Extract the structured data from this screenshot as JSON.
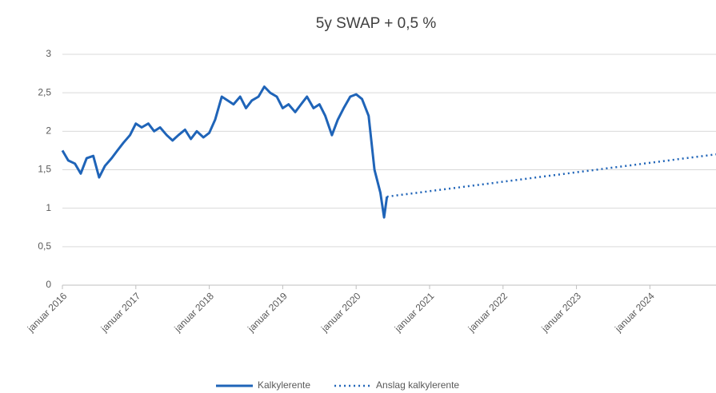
{
  "chart_data": {
    "type": "line",
    "title": "5y SWAP + 0,5 %",
    "series": [
      {
        "name": "Kalkylerente",
        "color": "#1f64b8",
        "dash": "solid",
        "x": [
          2016.0,
          2016.08,
          2016.17,
          2016.25,
          2016.33,
          2016.42,
          2016.5,
          2016.58,
          2016.67,
          2016.75,
          2016.83,
          2016.92,
          2017.0,
          2017.08,
          2017.17,
          2017.25,
          2017.33,
          2017.42,
          2017.5,
          2017.58,
          2017.67,
          2017.75,
          2017.83,
          2017.92,
          2018.0,
          2018.08,
          2018.17,
          2018.25,
          2018.33,
          2018.42,
          2018.5,
          2018.58,
          2018.67,
          2018.75,
          2018.83,
          2018.92,
          2019.0,
          2019.08,
          2019.17,
          2019.25,
          2019.33,
          2019.42,
          2019.5,
          2019.58,
          2019.67,
          2019.75,
          2019.83,
          2019.92,
          2020.0,
          2020.08,
          2020.17,
          2020.25,
          2020.33,
          2020.38,
          2020.42
        ],
        "values": [
          1.75,
          1.62,
          1.58,
          1.45,
          1.65,
          1.68,
          1.4,
          1.55,
          1.65,
          1.75,
          1.85,
          1.95,
          2.1,
          2.05,
          2.1,
          2.0,
          2.05,
          1.95,
          1.88,
          1.95,
          2.02,
          1.9,
          2.0,
          1.92,
          1.98,
          2.15,
          2.45,
          2.4,
          2.35,
          2.45,
          2.3,
          2.4,
          2.45,
          2.58,
          2.5,
          2.45,
          2.3,
          2.35,
          2.25,
          2.35,
          2.45,
          2.3,
          2.35,
          2.2,
          1.95,
          2.15,
          2.3,
          2.45,
          2.48,
          2.42,
          2.2,
          1.5,
          1.2,
          0.88,
          1.15
        ]
      },
      {
        "name": "Anslag kalkylerente",
        "color": "#1f64b8",
        "dash": "dotted",
        "x": [
          2020.42,
          2024.9
        ],
        "values": [
          1.15,
          1.7
        ]
      }
    ],
    "xlim": [
      2016,
      2024.9
    ],
    "xticks": [
      {
        "value": 2016,
        "label": "januar 2016"
      },
      {
        "value": 2017,
        "label": "januar 2017"
      },
      {
        "value": 2018,
        "label": "januar 2018"
      },
      {
        "value": 2019,
        "label": "januar 2019"
      },
      {
        "value": 2020,
        "label": "januar 2020"
      },
      {
        "value": 2021,
        "label": "januar 2021"
      },
      {
        "value": 2022,
        "label": "januar 2022"
      },
      {
        "value": 2023,
        "label": "januar 2023"
      },
      {
        "value": 2024,
        "label": "januar 2024"
      }
    ],
    "ylim": [
      0,
      3
    ],
    "yticks": [
      0,
      {
        "value": 0.5,
        "label": "0,5"
      },
      1,
      {
        "value": 1.5,
        "label": "1,5"
      },
      2,
      {
        "value": 2.5,
        "label": "2,5"
      },
      3
    ],
    "grid": true,
    "legend": "bottom"
  }
}
